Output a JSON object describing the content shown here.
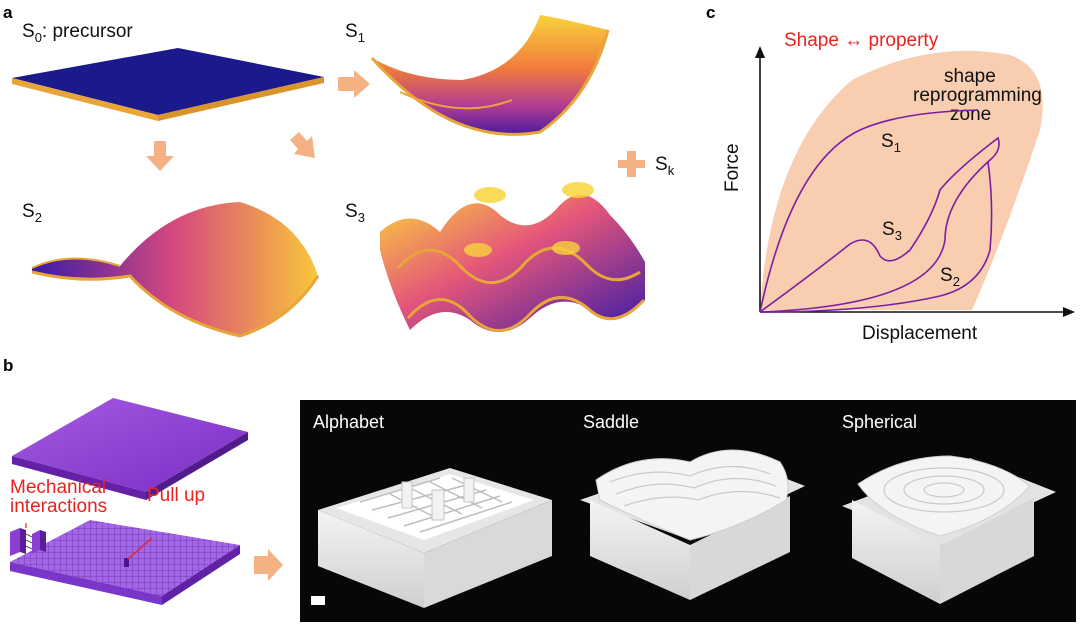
{
  "panel_a": {
    "letter": "a",
    "s0": {
      "sym": "S",
      "sub": "0",
      "text": ": precursor"
    },
    "s1": {
      "sym": "S",
      "sub": "1"
    },
    "s2": {
      "sym": "S",
      "sub": "2"
    },
    "s3": {
      "sym": "S",
      "sub": "3"
    },
    "sk": {
      "sym": "S",
      "sub": "k"
    }
  },
  "panel_b": {
    "letter": "b",
    "mechanical_line1": "Mechanical",
    "mechanical_line2": "interactions",
    "pull_up": "Pull up",
    "photos": [
      "Alphabet",
      "Saddle",
      "Spherical"
    ]
  },
  "panel_c": {
    "letter": "c",
    "title": "Shape ↔ property",
    "zone_line1": "shape",
    "zone_line2": "reprogramming",
    "zone_line3": "zone",
    "ylabel": "Force",
    "xlabel": "Displacement",
    "curves": [
      {
        "sym": "S",
        "sub": "1"
      },
      {
        "sym": "S",
        "sub": "3"
      },
      {
        "sym": "S",
        "sub": "2"
      }
    ]
  },
  "colors": {
    "arrow": "#f4b183",
    "zone": "#f8cdb0",
    "curve": "#7b1fa2",
    "navy": "#1a1a8c",
    "edge": "#e8a53a",
    "purple_block": "#8a3fd1",
    "highlight": "#e8231e"
  }
}
